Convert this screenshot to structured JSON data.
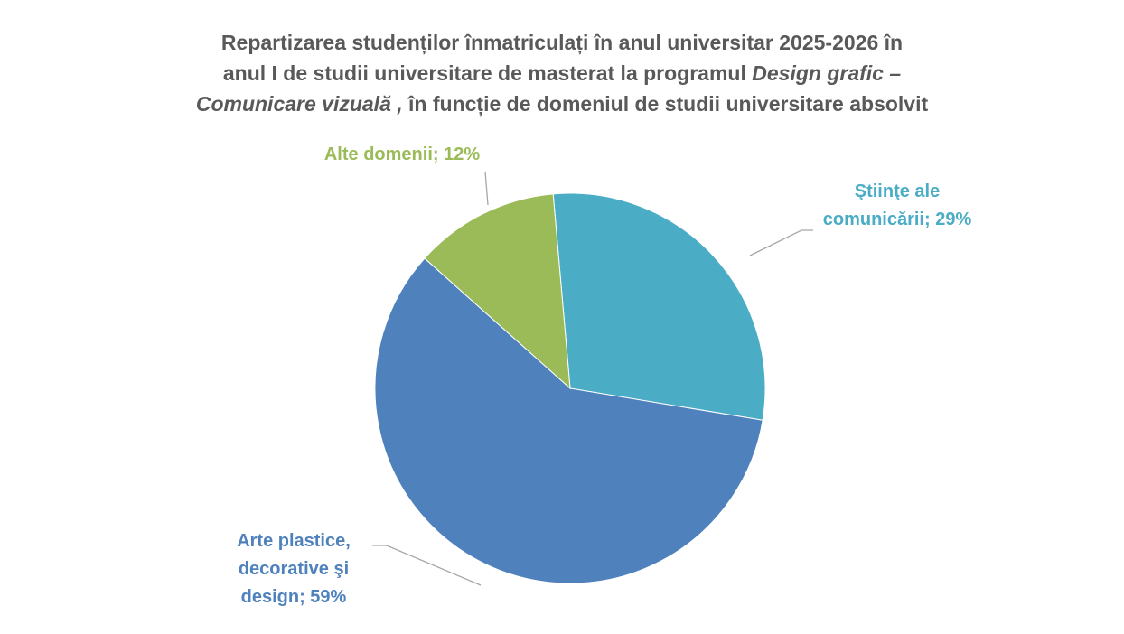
{
  "chart_data": {
    "type": "pie",
    "title_lines": [
      [
        {
          "text": "Repartizarea studenților înmatriculați în anul universitar 2025-2026 în",
          "italic": false
        }
      ],
      [
        {
          "text": "anul I de studii universitare de masterat la programul ",
          "italic": false
        },
        {
          "text": "Design grafic –",
          "italic": true
        }
      ],
      [
        {
          "text": "Comunicare vizuală ,",
          "italic": true
        },
        {
          "text": " în funcție de domeniul de studii universitare absolvit",
          "italic": false
        }
      ]
    ],
    "values": [
      29,
      59,
      12
    ],
    "value_labels": [
      "Ştiinţe ale comunicării; 29%",
      "Arte plastice, decorative şi design; 59%",
      "Alte domenii; 12%"
    ],
    "colors": [
      "#4bacc6",
      "#4f81bd",
      "#9bbb59"
    ]
  }
}
